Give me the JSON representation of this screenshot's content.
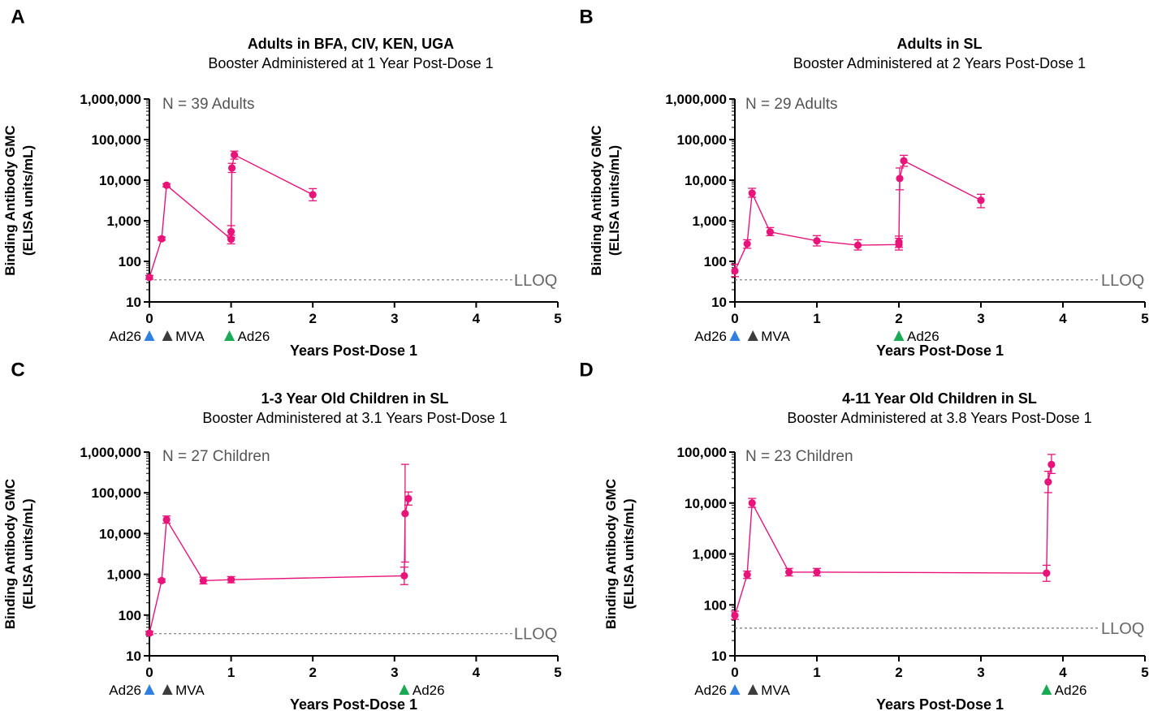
{
  "chart_data": [
    {
      "type": "line",
      "panel_letter": "A",
      "title": "Adults in BFA, CIV, KEN, UGA",
      "subtitle": "Booster Administered at 1 Year Post-Dose 1",
      "xlabel": "Years Post-Dose 1",
      "ylabel": [
        "Binding Antibody GMC",
        "(ELISA units/mL)"
      ],
      "xlim": [
        0,
        5
      ],
      "x_ticks": [
        "0",
        "1",
        "2",
        "3",
        "4",
        "5"
      ],
      "y_scale": "log",
      "ylim": [
        10,
        1000000
      ],
      "y_ticks": [
        {
          "value": 10,
          "label": "10"
        },
        {
          "value": 100,
          "label": "100"
        },
        {
          "value": 1000,
          "label": "1,000"
        },
        {
          "value": 10000,
          "label": "10,000"
        },
        {
          "value": 100000,
          "label": "100,000"
        },
        {
          "value": 1000000,
          "label": "1,000,000"
        }
      ],
      "annotation": "N = 39 Adults",
      "lloq": {
        "value": 35,
        "label": "LLOQ"
      },
      "series": [
        {
          "name": "GMC",
          "color": "#e8147a",
          "points": [
            {
              "x": 0,
              "y": 40,
              "lo": 36,
              "hi": 45
            },
            {
              "x": 0.15,
              "y": 360,
              "lo": 330,
              "hi": 400
            },
            {
              "x": 0.21,
              "y": 7500,
              "lo": 6800,
              "hi": 8200
            },
            {
              "x": 1.0,
              "y": 350,
              "lo": 270,
              "hi": 440
            },
            {
              "x": 1.0,
              "y": 540,
              "lo": 390,
              "hi": 760
            },
            {
              "x": 1.01,
              "y": 20000,
              "lo": 15500,
              "hi": 26000
            },
            {
              "x": 1.04,
              "y": 42000,
              "lo": 33000,
              "hi": 52000
            },
            {
              "x": 2.0,
              "y": 4400,
              "lo": 3100,
              "hi": 6200
            }
          ]
        }
      ],
      "markers": [
        {
          "label": "Ad26",
          "x": 0,
          "color": "#2f7fe0"
        },
        {
          "label": "MVA",
          "x": 0.22,
          "color": "#3c3c3c"
        },
        {
          "label": "Ad26",
          "x": 0.98,
          "color": "#1aaa55"
        }
      ]
    },
    {
      "type": "line",
      "panel_letter": "B",
      "title": "Adults in SL",
      "subtitle": "Booster Administered at 2 Years Post-Dose 1",
      "xlabel": "Years Post-Dose 1",
      "ylabel": [
        "Binding Antibody GMC",
        "(ELISA units/mL)"
      ],
      "xlim": [
        0,
        5
      ],
      "x_ticks": [
        "0",
        "1",
        "2",
        "3",
        "4",
        "5"
      ],
      "y_scale": "log",
      "ylim": [
        10,
        1000000
      ],
      "y_ticks": [
        {
          "value": 10,
          "label": "10"
        },
        {
          "value": 100,
          "label": "100"
        },
        {
          "value": 1000,
          "label": "1,000"
        },
        {
          "value": 10000,
          "label": "10,000"
        },
        {
          "value": 100000,
          "label": "100,000"
        },
        {
          "value": 1000000,
          "label": "1,000,000"
        }
      ],
      "annotation": "N = 29 Adults",
      "lloq": {
        "value": 35,
        "label": "LLOQ"
      },
      "series": [
        {
          "name": "GMC",
          "color": "#e8147a",
          "points": [
            {
              "x": 0,
              "y": 58,
              "lo": 42,
              "hi": 85
            },
            {
              "x": 0.15,
              "y": 270,
              "lo": 210,
              "hi": 340
            },
            {
              "x": 0.21,
              "y": 4800,
              "lo": 3800,
              "hi": 6300
            },
            {
              "x": 0.43,
              "y": 530,
              "lo": 430,
              "hi": 680
            },
            {
              "x": 1.0,
              "y": 320,
              "lo": 240,
              "hi": 430
            },
            {
              "x": 1.5,
              "y": 250,
              "lo": 190,
              "hi": 340
            },
            {
              "x": 2.0,
              "y": 260,
              "lo": 190,
              "hi": 370
            },
            {
              "x": 2.0,
              "y": 300,
              "lo": 220,
              "hi": 420
            },
            {
              "x": 2.01,
              "y": 11000,
              "lo": 5800,
              "hi": 20000
            },
            {
              "x": 2.06,
              "y": 30000,
              "lo": 22000,
              "hi": 41000
            },
            {
              "x": 3.0,
              "y": 3200,
              "lo": 2100,
              "hi": 4500
            }
          ]
        }
      ],
      "markers": [
        {
          "label": "Ad26",
          "x": 0,
          "color": "#2f7fe0"
        },
        {
          "label": "MVA",
          "x": 0.22,
          "color": "#3c3c3c"
        },
        {
          "label": "Ad26",
          "x": 2.0,
          "color": "#1aaa55"
        }
      ]
    },
    {
      "type": "line",
      "panel_letter": "C",
      "title": "1-3 Year Old Children in SL",
      "subtitle": "Booster Administered at 3.1 Years Post-Dose 1",
      "xlabel": "Years Post-Dose 1",
      "ylabel": [
        "Binding Antibody GMC",
        "(ELISA units/mL)"
      ],
      "xlim": [
        0,
        5
      ],
      "x_ticks": [
        "0",
        "1",
        "2",
        "3",
        "4",
        "5"
      ],
      "y_scale": "log",
      "ylim": [
        10,
        1000000
      ],
      "y_ticks": [
        {
          "value": 10,
          "label": "10"
        },
        {
          "value": 100,
          "label": "100"
        },
        {
          "value": 1000,
          "label": "1,000"
        },
        {
          "value": 10000,
          "label": "10,000"
        },
        {
          "value": 100000,
          "label": "100,000"
        },
        {
          "value": 1000000,
          "label": "1,000,000"
        }
      ],
      "annotation": "N = 27 Children",
      "lloq": {
        "value": 35,
        "label": "LLOQ"
      },
      "series": [
        {
          "name": "GMC",
          "color": "#e8147a",
          "points": [
            {
              "x": 0,
              "y": 36,
              "lo": 33,
              "hi": 40
            },
            {
              "x": 0.15,
              "y": 700,
              "lo": 640,
              "hi": 770
            },
            {
              "x": 0.21,
              "y": 22000,
              "lo": 18000,
              "hi": 27000
            },
            {
              "x": 0.66,
              "y": 700,
              "lo": 580,
              "hi": 850
            },
            {
              "x": 1.0,
              "y": 740,
              "lo": 620,
              "hi": 880
            },
            {
              "x": 3.12,
              "y": 920,
              "lo": 560,
              "hi": 1500
            },
            {
              "x": 3.13,
              "y": 31000,
              "lo": 2000,
              "hi": 500000
            },
            {
              "x": 3.17,
              "y": 72000,
              "lo": 50000,
              "hi": 105000
            }
          ]
        }
      ],
      "markers": [
        {
          "label": "Ad26",
          "x": 0,
          "color": "#2f7fe0"
        },
        {
          "label": "MVA",
          "x": 0.22,
          "color": "#3c3c3c"
        },
        {
          "label": "Ad26",
          "x": 3.12,
          "color": "#1aaa55"
        }
      ]
    },
    {
      "type": "line",
      "panel_letter": "D",
      "title": "4-11 Year Old Children in SL",
      "subtitle": "Booster Administered at 3.8 Years Post-Dose 1",
      "xlabel": "Years Post-Dose 1",
      "ylabel": [
        "Binding Antibody GMC",
        "(ELISA units/mL)"
      ],
      "xlim": [
        0,
        5
      ],
      "x_ticks": [
        "0",
        "1",
        "2",
        "3",
        "4",
        "5"
      ],
      "y_scale": "log",
      "ylim": [
        10,
        100000
      ],
      "y_ticks": [
        {
          "value": 10,
          "label": "10"
        },
        {
          "value": 100,
          "label": "100"
        },
        {
          "value": 1000,
          "label": "1,000"
        },
        {
          "value": 10000,
          "label": "10,000"
        },
        {
          "value": 100000,
          "label": "100,000"
        }
      ],
      "annotation": "N = 23 Children",
      "lloq": {
        "value": 35,
        "label": "LLOQ"
      },
      "series": [
        {
          "name": "GMC",
          "color": "#e8147a",
          "points": [
            {
              "x": 0,
              "y": 62,
              "lo": 52,
              "hi": 75
            },
            {
              "x": 0.15,
              "y": 390,
              "lo": 330,
              "hi": 460
            },
            {
              "x": 0.21,
              "y": 10000,
              "lo": 8200,
              "hi": 12300
            },
            {
              "x": 0.66,
              "y": 440,
              "lo": 370,
              "hi": 520
            },
            {
              "x": 1.0,
              "y": 440,
              "lo": 370,
              "hi": 520
            },
            {
              "x": 3.8,
              "y": 420,
              "lo": 290,
              "hi": 600
            },
            {
              "x": 3.82,
              "y": 26000,
              "lo": 16000,
              "hi": 42000
            },
            {
              "x": 3.86,
              "y": 57000,
              "lo": 38000,
              "hi": 90000
            }
          ]
        }
      ],
      "markers": [
        {
          "label": "Ad26",
          "x": 0,
          "color": "#2f7fe0"
        },
        {
          "label": "MVA",
          "x": 0.22,
          "color": "#3c3c3c"
        },
        {
          "label": "Ad26",
          "x": 3.8,
          "color": "#1aaa55"
        }
      ]
    }
  ]
}
